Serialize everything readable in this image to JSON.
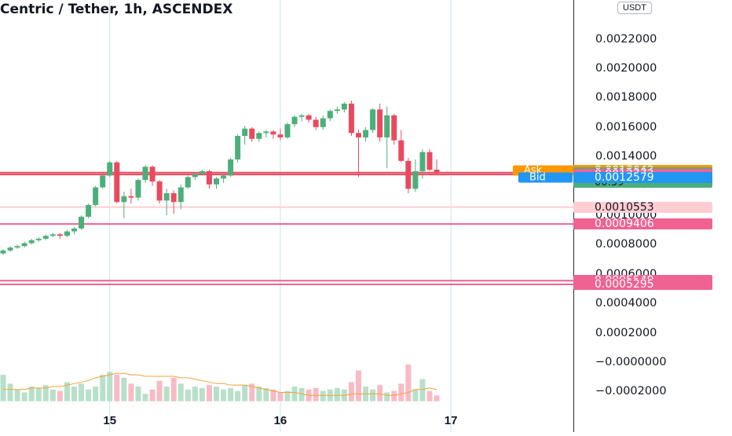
{
  "title": "Centric / Tether, 1h, ASCENDEX",
  "currency_button": "USDT",
  "price_axis": {
    "labels": [
      {
        "text": "0.0022000",
        "value": 0.0022
      },
      {
        "text": "0.0020000",
        "value": 0.002
      },
      {
        "text": "0.0018000",
        "value": 0.0018
      },
      {
        "text": "0.0016000",
        "value": 0.0016
      },
      {
        "text": "0.0014000",
        "value": 0.0014
      },
      {
        "text": "0.0010000",
        "value": 0.001
      },
      {
        "text": "0.0008000",
        "value": 0.0008
      },
      {
        "text": "0.0006000",
        "value": 0.0006
      },
      {
        "text": "0.0004000",
        "value": 0.0004
      },
      {
        "text": "0.0002000",
        "value": 0.0002
      },
      {
        "text": "−0.0000000",
        "value": 0.0
      },
      {
        "text": "−0.0002000",
        "value": -0.0002
      }
    ]
  },
  "badges": {
    "ask": {
      "label": "Ask",
      "value": "0.0013042",
      "price": 0.0013042,
      "color": "#ff9800"
    },
    "last": {
      "value": "0.0012904",
      "countdown": "00:39",
      "price": 0.0012904,
      "color": "#4caf7a"
    },
    "level1": {
      "value": "0.0012772",
      "price": 0.0012772,
      "color": "#f06292"
    },
    "bid": {
      "label": "Bid",
      "value": "0.0012579",
      "price": 0.0012579,
      "color": "#2196f3"
    },
    "level2": {
      "value": "0.0010553",
      "price": 0.0010553,
      "color": "#ffcdd2"
    },
    "level3": {
      "value": "0.0009406",
      "price": 0.0009406,
      "color": "#f06292"
    },
    "level4": {
      "value": "0.0005549",
      "price": 0.0005549,
      "color": "#f06292"
    },
    "level5": {
      "value": "0.0005295",
      "price": 0.0005295,
      "color": "#f06292"
    }
  },
  "date_labels": [
    {
      "text": "15",
      "index": 15
    },
    {
      "text": "16",
      "index": 39
    },
    {
      "text": "17",
      "index": 63
    }
  ],
  "chart_data": {
    "type": "candlestick",
    "title": "Centric / Tether, 1h, ASCENDEX",
    "ylim": [
      -0.00025,
      0.0023
    ],
    "colors": {
      "up": "#4caf7a",
      "down": "#e84a5f",
      "vol_up": "#b8e0c9",
      "vol_down": "#f8bbc5",
      "ma": "#f5a03a"
    },
    "candles": [
      [
        0.00074,
        0.00077,
        0.00073,
        0.00076
      ],
      [
        0.00076,
        0.00079,
        0.00075,
        0.00078
      ],
      [
        0.00078,
        0.0008,
        0.00077,
        0.00079
      ],
      [
        0.00079,
        0.00082,
        0.00078,
        0.00081
      ],
      [
        0.00081,
        0.00084,
        0.0008,
        0.00083
      ],
      [
        0.00083,
        0.00085,
        0.00082,
        0.00084
      ],
      [
        0.00084,
        0.00087,
        0.00083,
        0.00086
      ],
      [
        0.00086,
        0.00088,
        0.00085,
        0.00087
      ],
      [
        0.00087,
        0.00088,
        0.00084,
        0.00086
      ],
      [
        0.00086,
        0.0009,
        0.00085,
        0.00089
      ],
      [
        0.00089,
        0.00092,
        0.00087,
        0.00091
      ],
      [
        0.00091,
        0.001,
        0.0009,
        0.00099
      ],
      [
        0.00099,
        0.00108,
        0.00098,
        0.00107
      ],
      [
        0.00107,
        0.0012,
        0.00106,
        0.00119
      ],
      [
        0.00119,
        0.00128,
        0.00118,
        0.00127
      ],
      [
        0.00127,
        0.00137,
        0.00126,
        0.00136
      ],
      [
        0.00136,
        0.00137,
        0.00108,
        0.00109
      ],
      [
        0.00109,
        0.00116,
        0.00098,
        0.00113
      ],
      [
        0.00113,
        0.00118,
        0.00108,
        0.00112
      ],
      [
        0.00112,
        0.00125,
        0.0011,
        0.00124
      ],
      [
        0.00124,
        0.00134,
        0.00122,
        0.00133
      ],
      [
        0.00133,
        0.00134,
        0.0012,
        0.00123
      ],
      [
        0.00123,
        0.00124,
        0.00108,
        0.0011
      ],
      [
        0.0011,
        0.00118,
        0.001,
        0.00115
      ],
      [
        0.00115,
        0.00117,
        0.00101,
        0.00109
      ],
      [
        0.00109,
        0.00121,
        0.00104,
        0.00119
      ],
      [
        0.00119,
        0.00127,
        0.00118,
        0.00126
      ],
      [
        0.00126,
        0.00129,
        0.00124,
        0.00128
      ],
      [
        0.00128,
        0.00131,
        0.00127,
        0.0013
      ],
      [
        0.0013,
        0.00131,
        0.00118,
        0.00121
      ],
      [
        0.00121,
        0.00126,
        0.00118,
        0.00125
      ],
      [
        0.00125,
        0.00128,
        0.00122,
        0.00127
      ],
      [
        0.00127,
        0.00139,
        0.00126,
        0.00138
      ],
      [
        0.00138,
        0.00155,
        0.00136,
        0.00154
      ],
      [
        0.00154,
        0.00161,
        0.00148,
        0.00159
      ],
      [
        0.00159,
        0.0016,
        0.0015,
        0.00152
      ],
      [
        0.00152,
        0.00157,
        0.0015,
        0.00156
      ],
      [
        0.00156,
        0.00158,
        0.00153,
        0.00157
      ],
      [
        0.00157,
        0.00158,
        0.00152,
        0.00155
      ],
      [
        0.00155,
        0.00159,
        0.00151,
        0.00153
      ],
      [
        0.00153,
        0.00163,
        0.00152,
        0.00162
      ],
      [
        0.00162,
        0.00168,
        0.0016,
        0.00167
      ],
      [
        0.00167,
        0.00169,
        0.00164,
        0.00168
      ],
      [
        0.00168,
        0.00169,
        0.00163,
        0.00165
      ],
      [
        0.00165,
        0.00167,
        0.00158,
        0.0016
      ],
      [
        0.0016,
        0.00168,
        0.00158,
        0.00166
      ],
      [
        0.00166,
        0.00172,
        0.00164,
        0.00171
      ],
      [
        0.00171,
        0.00174,
        0.00169,
        0.00172
      ],
      [
        0.00172,
        0.00177,
        0.0017,
        0.00176
      ],
      [
        0.00176,
        0.00178,
        0.00154,
        0.00156
      ],
      [
        0.00156,
        0.00158,
        0.00126,
        0.00153
      ],
      [
        0.00153,
        0.0016,
        0.0015,
        0.00158
      ],
      [
        0.00158,
        0.00173,
        0.00156,
        0.00172
      ],
      [
        0.00172,
        0.00176,
        0.0015,
        0.00153
      ],
      [
        0.00153,
        0.00174,
        0.00132,
        0.00168
      ],
      [
        0.00168,
        0.00169,
        0.00148,
        0.00151
      ],
      [
        0.00151,
        0.00158,
        0.00136,
        0.00137
      ],
      [
        0.00137,
        0.00139,
        0.00115,
        0.00118
      ],
      [
        0.00118,
        0.00138,
        0.00116,
        0.0013
      ],
      [
        0.0013,
        0.00145,
        0.00125,
        0.00143
      ],
      [
        0.00143,
        0.00145,
        0.0013,
        0.00131
      ],
      [
        0.00131,
        0.00138,
        0.00127,
        0.00129
      ]
    ],
    "volume": [
      0.00018,
      0.00012,
      8e-05,
      6e-05,
      0.0001,
      9e-05,
      0.00011,
      8e-05,
      7e-05,
      0.00013,
      0.0001,
      0.00012,
      8e-05,
      0.0001,
      0.00018,
      0.0002,
      0.00018,
      0.00016,
      0.00012,
      0.0001,
      5e-05,
      8e-05,
      0.00014,
      0.0001,
      0.00016,
      0.00012,
      8e-05,
      0.0001,
      9e-05,
      0.00011,
      0.0001,
      8e-05,
      9e-05,
      7e-05,
      0.00011,
      0.00012,
      0.0001,
      9e-05,
      8e-05,
      6e-05,
      7e-05,
      0.0001,
      9e-05,
      8e-05,
      9e-05,
      7e-05,
      8e-05,
      9e-05,
      8e-05,
      0.00013,
      0.00021,
      0.0001,
      8e-05,
      0.00011,
      6e-05,
      7e-05,
      0.00012,
      0.00025,
      8e-05,
      0.00015,
      7e-05,
      4e-05
    ],
    "volume_baseline": -0.00025,
    "volume_ma": [
      8e-05,
      8e-05,
      8e-05,
      8e-05,
      9e-05,
      9e-05,
      9e-05,
      0.0001,
      0.0001,
      0.00011,
      0.00012,
      0.00013,
      0.00014,
      0.00016,
      0.00017,
      0.00018,
      0.00019,
      0.00019,
      0.00018,
      0.00018,
      0.00017,
      0.00017,
      0.00017,
      0.00017,
      0.00017,
      0.00016,
      0.00016,
      0.00015,
      0.00014,
      0.00013,
      0.00012,
      0.00012,
      0.00011,
      0.00011,
      0.00011,
      0.0001,
      9e-05,
      8e-05,
      7e-05,
      6e-05,
      6e-05,
      6e-05,
      5e-05,
      4e-05,
      4e-05,
      4e-05,
      4e-05,
      4e-05,
      4e-05,
      5e-05,
      5e-05,
      5e-05,
      5e-05,
      5e-05,
      4e-05,
      4e-05,
      5e-05,
      6e-05,
      8e-05,
      8e-05,
      9e-05,
      8e-05
    ],
    "horizontal_lines": [
      {
        "price": 0.0012904,
        "color": "#e84a5f"
      },
      {
        "price": 0.0012772,
        "color": "#e84a5f"
      },
      {
        "price": 0.0010553,
        "color": "#ffcdd2"
      },
      {
        "price": 0.0009406,
        "color": "#f06292"
      },
      {
        "price": 0.0005549,
        "color": "#f06292"
      },
      {
        "price": 0.0005295,
        "color": "#f06292"
      }
    ],
    "vertical_lines_at_index": [
      15,
      39,
      63
    ]
  }
}
